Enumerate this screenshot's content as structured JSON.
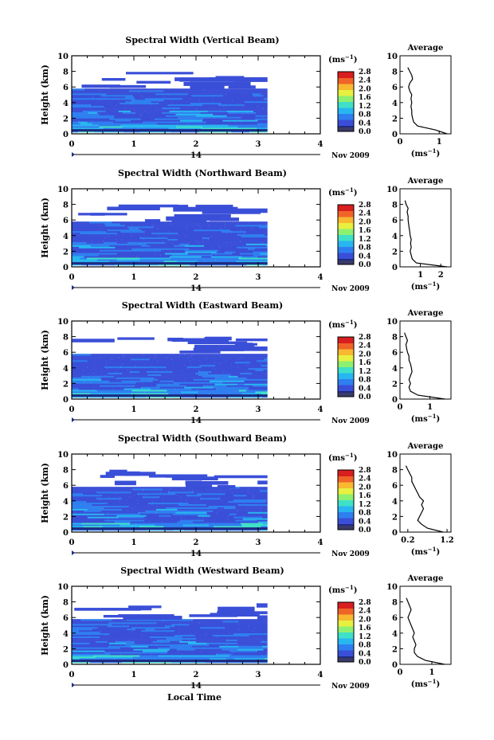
{
  "figure": {
    "xlabel": "Local Time",
    "date_label": "Nov 2009",
    "day_label": "14",
    "unit_label": "(ms",
    "unit_sup": "−1",
    "average_title": "Average"
  },
  "colors": {
    "scale": [
      "#1f2a80",
      "#3a4fd8",
      "#2f7ff0",
      "#28b6f0",
      "#3fe0c8",
      "#8ef070",
      "#e8f040",
      "#f8b830",
      "#f06428",
      "#d81e1e"
    ]
  },
  "chart_data": [
    {
      "type": "heatmap",
      "title": "Spectral Width (Vertical Beam)",
      "ylabel": "Height (km)",
      "x_ticks": [
        0,
        1,
        2,
        3,
        4
      ],
      "y_ticks": [
        0,
        2,
        4,
        6,
        8,
        10
      ],
      "xlim": [
        0,
        4
      ],
      "ylim": [
        0,
        10
      ],
      "data_xlim": [
        0,
        3.15
      ],
      "colorbar": {
        "range": [
          0,
          2.8
        ],
        "ticks": [
          "2.8",
          "2.4",
          "2.0",
          "1.6",
          "1.2",
          "0.8",
          "0.4",
          "0.0"
        ]
      },
      "average": {
        "x_ticks": [
          "0",
          "1"
        ],
        "xlim": [
          0,
          1.3
        ],
        "profile": [
          [
            0.0,
            1.2
          ],
          [
            0.5,
            0.9
          ],
          [
            1.0,
            0.45
          ],
          [
            1.5,
            0.35
          ],
          [
            2.0,
            0.32
          ],
          [
            2.5,
            0.3
          ],
          [
            3.0,
            0.3
          ],
          [
            3.5,
            0.28
          ],
          [
            4.0,
            0.3
          ],
          [
            4.5,
            0.28
          ],
          [
            5.0,
            0.3
          ],
          [
            5.5,
            0.25
          ],
          [
            6.0,
            0.22
          ],
          [
            6.5,
            0.25
          ],
          [
            7.0,
            0.32
          ],
          [
            7.5,
            0.3
          ],
          [
            8.0,
            0.25
          ],
          [
            8.5,
            0.2
          ]
        ]
      }
    },
    {
      "type": "heatmap",
      "title": "Spectral Width (Northward Beam)",
      "ylabel": "Height (km)",
      "x_ticks": [
        0,
        1,
        2,
        3,
        4
      ],
      "y_ticks": [
        0,
        2,
        4,
        6,
        8,
        10
      ],
      "xlim": [
        0,
        4
      ],
      "ylim": [
        0,
        10
      ],
      "data_xlim": [
        0,
        3.15
      ],
      "colorbar": {
        "range": [
          0,
          2.8
        ],
        "ticks": [
          "2.8",
          "2.4",
          "2.0",
          "1.6",
          "1.2",
          "0.8",
          "0.4",
          "0.0"
        ]
      },
      "average": {
        "x_ticks": [
          "1",
          "2"
        ],
        "xlim": [
          0,
          2.5
        ],
        "profile": [
          [
            0.0,
            2.3
          ],
          [
            0.5,
            0.8
          ],
          [
            1.0,
            0.6
          ],
          [
            1.5,
            0.55
          ],
          [
            2.0,
            0.5
          ],
          [
            2.5,
            0.55
          ],
          [
            3.0,
            0.52
          ],
          [
            3.5,
            0.55
          ],
          [
            4.0,
            0.5
          ],
          [
            4.5,
            0.48
          ],
          [
            5.0,
            0.45
          ],
          [
            5.5,
            0.42
          ],
          [
            6.0,
            0.4
          ],
          [
            6.5,
            0.4
          ],
          [
            7.0,
            0.35
          ],
          [
            7.5,
            0.4
          ],
          [
            8.0,
            0.3
          ],
          [
            8.5,
            0.25
          ]
        ]
      }
    },
    {
      "type": "heatmap",
      "title": "Spectral Width (Eastward Beam)",
      "ylabel": "Height (km)",
      "x_ticks": [
        0,
        1,
        2,
        3,
        4
      ],
      "y_ticks": [
        0,
        2,
        4,
        6,
        8,
        10
      ],
      "xlim": [
        0,
        4
      ],
      "ylim": [
        0,
        10
      ],
      "data_xlim": [
        0,
        3.15
      ],
      "colorbar": {
        "range": [
          0,
          2.8
        ],
        "ticks": [
          "2.8",
          "2.4",
          "2.0",
          "1.6",
          "1.2",
          "0.8",
          "0.4",
          "0.0"
        ]
      },
      "average": {
        "x_ticks": [
          "0",
          "1"
        ],
        "xlim": [
          0,
          1.7
        ],
        "profile": [
          [
            0.0,
            1.5
          ],
          [
            0.5,
            0.6
          ],
          [
            1.0,
            0.35
          ],
          [
            1.5,
            0.3
          ],
          [
            2.0,
            0.35
          ],
          [
            2.5,
            0.3
          ],
          [
            3.0,
            0.35
          ],
          [
            3.5,
            0.4
          ],
          [
            4.0,
            0.38
          ],
          [
            4.5,
            0.35
          ],
          [
            5.0,
            0.3
          ],
          [
            5.5,
            0.3
          ],
          [
            6.0,
            0.25
          ],
          [
            6.5,
            0.22
          ],
          [
            7.0,
            0.2
          ],
          [
            7.5,
            0.25
          ],
          [
            8.0,
            0.2
          ],
          [
            8.5,
            0.15
          ]
        ]
      }
    },
    {
      "type": "heatmap",
      "title": "Spectral Width (Southward Beam)",
      "ylabel": "Height (km)",
      "x_ticks": [
        0,
        1,
        2,
        3,
        4
      ],
      "y_ticks": [
        0,
        2,
        4,
        6,
        8,
        10
      ],
      "xlim": [
        0,
        4
      ],
      "ylim": [
        0,
        10
      ],
      "data_xlim": [
        0,
        3.15
      ],
      "colorbar": {
        "range": [
          0,
          2.8
        ],
        "ticks": [
          "2.8",
          "2.4",
          "2.0",
          "1.6",
          "1.2",
          "0.8",
          "0.4",
          "0.0"
        ]
      },
      "average": {
        "x_ticks": [
          "0.2",
          "1.2"
        ],
        "xlim": [
          0,
          1.3
        ],
        "profile": [
          [
            0.0,
            1.1
          ],
          [
            0.5,
            0.7
          ],
          [
            1.0,
            0.55
          ],
          [
            1.5,
            0.45
          ],
          [
            2.0,
            0.5
          ],
          [
            2.5,
            0.55
          ],
          [
            3.0,
            0.6
          ],
          [
            3.5,
            0.55
          ],
          [
            4.0,
            0.6
          ],
          [
            4.5,
            0.5
          ],
          [
            5.0,
            0.45
          ],
          [
            5.5,
            0.4
          ],
          [
            6.0,
            0.35
          ],
          [
            6.5,
            0.3
          ],
          [
            7.0,
            0.3
          ],
          [
            7.5,
            0.25
          ],
          [
            8.0,
            0.2
          ],
          [
            8.5,
            0.15
          ]
        ]
      }
    },
    {
      "type": "heatmap",
      "title": "Spectral Width (Westward Beam)",
      "ylabel": "Height (km)",
      "x_ticks": [
        0,
        1,
        2,
        3,
        4
      ],
      "y_ticks": [
        0,
        2,
        4,
        6,
        8,
        10
      ],
      "xlim": [
        0,
        4
      ],
      "ylim": [
        0,
        10
      ],
      "data_xlim": [
        0,
        3.15
      ],
      "colorbar": {
        "range": [
          0,
          2.8
        ],
        "ticks": [
          "2.8",
          "2.4",
          "2.0",
          "1.6",
          "1.2",
          "0.8",
          "0.4",
          "0.0"
        ]
      },
      "average": {
        "x_ticks": [
          "0",
          "1"
        ],
        "xlim": [
          0,
          1.6
        ],
        "profile": [
          [
            0.0,
            1.4
          ],
          [
            0.5,
            0.8
          ],
          [
            1.0,
            0.55
          ],
          [
            1.5,
            0.45
          ],
          [
            2.0,
            0.45
          ],
          [
            2.5,
            0.5
          ],
          [
            3.0,
            0.45
          ],
          [
            3.5,
            0.4
          ],
          [
            4.0,
            0.45
          ],
          [
            4.5,
            0.4
          ],
          [
            5.0,
            0.35
          ],
          [
            5.5,
            0.3
          ],
          [
            6.0,
            0.25
          ],
          [
            6.5,
            0.3
          ],
          [
            7.0,
            0.35
          ],
          [
            7.5,
            0.3
          ],
          [
            8.0,
            0.25
          ],
          [
            8.5,
            0.2
          ]
        ]
      }
    }
  ]
}
